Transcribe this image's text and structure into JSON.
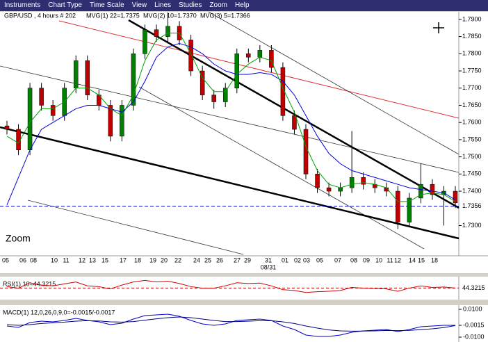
{
  "menu": [
    "Instruments",
    "Chart Type",
    "Time Scale",
    "View",
    "Lines",
    "Studies",
    "Zoom",
    "Help"
  ],
  "chart_data": [
    {
      "type": "candlestick",
      "title": "GBP/USD , 4 hours # 202",
      "annotation": "Zoom",
      "legend_note": "MVG(3) 5=1.7366",
      "x_sublabel": "08/31",
      "x_labels": [
        "05",
        "06",
        "08",
        "10",
        "11",
        "12",
        "13",
        "15",
        "17",
        "18",
        "19",
        "20",
        "22",
        "24",
        "25",
        "26",
        "27",
        "29",
        "31",
        "01",
        "02",
        "03",
        "05",
        "07",
        "08",
        "09",
        "10",
        "11",
        "12",
        "14",
        "15",
        "18"
      ],
      "up_color": "#008000",
      "down_color": "#c00000",
      "open": [
        1.759,
        1.758,
        1.752,
        1.77,
        1.765,
        1.762,
        1.77,
        1.778,
        1.768,
        1.765,
        1.756,
        1.765,
        1.78,
        1.787,
        1.785,
        1.788,
        1.784,
        1.775,
        1.768,
        1.766,
        1.77,
        1.78,
        1.779,
        1.781,
        1.776,
        1.762,
        1.758,
        1.745,
        1.741,
        1.74,
        1.741,
        1.744,
        1.742,
        1.741,
        1.74,
        1.731,
        1.738,
        1.742,
        1.739,
        1.74
      ],
      "high": [
        1.7605,
        1.7595,
        1.7715,
        1.7715,
        1.7665,
        1.7715,
        1.7795,
        1.7795,
        1.7695,
        1.7665,
        1.7665,
        1.7815,
        1.7885,
        1.7885,
        1.792,
        1.7895,
        1.7855,
        1.7765,
        1.7695,
        1.7715,
        1.7815,
        1.7815,
        1.7825,
        1.7825,
        1.7775,
        1.7635,
        1.7595,
        1.7465,
        1.7425,
        1.7425,
        1.7575,
        1.7455,
        1.7435,
        1.7425,
        1.7415,
        1.7395,
        1.748,
        1.7435,
        1.7415,
        1.7415
      ],
      "low": [
        1.7565,
        1.7505,
        1.7505,
        1.7635,
        1.7605,
        1.7605,
        1.7685,
        1.7665,
        1.7635,
        1.7545,
        1.7545,
        1.7635,
        1.7785,
        1.7835,
        1.7835,
        1.7825,
        1.7735,
        1.7665,
        1.764,
        1.7645,
        1.7685,
        1.7775,
        1.7775,
        1.7745,
        1.7605,
        1.7565,
        1.7435,
        1.7395,
        1.7385,
        1.7385,
        1.7395,
        1.7405,
        1.7395,
        1.7385,
        1.729,
        1.7295,
        1.7365,
        1.7375,
        1.73,
        1.7351
      ],
      "close": [
        1.758,
        1.752,
        1.77,
        1.765,
        1.762,
        1.77,
        1.778,
        1.768,
        1.765,
        1.756,
        1.765,
        1.78,
        1.787,
        1.785,
        1.788,
        1.784,
        1.775,
        1.768,
        1.766,
        1.77,
        1.78,
        1.779,
        1.781,
        1.776,
        1.762,
        1.758,
        1.745,
        1.741,
        1.74,
        1.741,
        1.744,
        1.742,
        1.741,
        1.74,
        1.731,
        1.738,
        1.742,
        1.739,
        1.74,
        1.7366
      ],
      "series": [
        {
          "name": "MVG(1) 22=1.7375",
          "color": "#0000e0",
          "values": [
            1.736,
            1.744,
            1.752,
            1.758,
            1.76,
            1.762,
            1.764,
            1.765,
            1.765,
            1.764,
            1.763,
            1.766,
            1.772,
            1.779,
            1.782,
            1.783,
            1.782,
            1.78,
            1.777,
            1.775,
            1.774,
            1.774,
            1.7745,
            1.774,
            1.772,
            1.768,
            1.762,
            1.756,
            1.751,
            1.748,
            1.746,
            1.745,
            1.744,
            1.743,
            1.742,
            1.741,
            1.7405,
            1.74,
            1.7395,
            1.7375
          ]
        },
        {
          "name": "MVG(2) 10=1.7370",
          "color": "#00a000",
          "values": [
            1.756,
            1.754,
            1.76,
            1.764,
            1.764,
            1.766,
            1.77,
            1.77,
            1.768,
            1.764,
            1.762,
            1.768,
            1.778,
            1.784,
            1.786,
            1.786,
            1.78,
            1.773,
            1.769,
            1.769,
            1.774,
            1.777,
            1.779,
            1.778,
            1.77,
            1.763,
            1.753,
            1.746,
            1.742,
            1.741,
            1.742,
            1.7425,
            1.742,
            1.741,
            1.737,
            1.737,
            1.739,
            1.7395,
            1.739,
            1.737
          ]
        }
      ],
      "marker_line": 1.7356,
      "marker_color": "#0000c0",
      "ylim": [
        1.7212,
        1.7922
      ],
      "yticks": [
        {
          "value": 1.79,
          "label": "1.7900"
        },
        {
          "value": 1.785,
          "label": "1.7850"
        },
        {
          "value": 1.78,
          "label": "1.7800"
        },
        {
          "value": 1.775,
          "label": "1.7750"
        },
        {
          "value": 1.77,
          "label": "1.7700"
        },
        {
          "value": 1.765,
          "label": "1.7650"
        },
        {
          "value": 1.76,
          "label": "1.7600"
        },
        {
          "value": 1.755,
          "label": "1.7550"
        },
        {
          "value": 1.75,
          "label": "1.7500"
        },
        {
          "value": 1.745,
          "label": "1.7450"
        },
        {
          "value": 1.74,
          "label": "1.7400"
        },
        {
          "value": 1.73,
          "label": "1.7300"
        }
      ]
    },
    {
      "type": "line",
      "title": "RSI(1) 10=44.3215",
      "series": [
        {
          "color": "#d00000",
          "values": [
            48,
            44,
            58,
            52,
            50,
            55,
            60,
            50,
            48,
            42,
            52,
            60,
            64,
            60,
            62,
            56,
            48,
            44,
            44,
            50,
            58,
            56,
            57,
            50,
            40,
            38,
            33,
            35,
            36,
            38,
            46,
            44,
            43,
            42,
            36,
            44,
            50,
            46,
            47,
            44.3215
          ]
        }
      ],
      "ylim": [
        20,
        70
      ],
      "yticks": [
        44.3215
      ]
    },
    {
      "type": "line",
      "title": "MACD(1) 12,0,26,0,9,0=-0.0015/-0.0017",
      "series": [
        {
          "color": "#0000c0",
          "values": [
            -0.002,
            -0.003,
            0.0005,
            0.0015,
            0.001,
            0.002,
            0.0035,
            0.002,
            0.001,
            -0.001,
            0.0,
            0.003,
            0.0055,
            0.006,
            0.0065,
            0.005,
            0.002,
            -0.0005,
            -0.0015,
            -0.0005,
            0.002,
            0.0025,
            0.003,
            0.002,
            -0.002,
            -0.0045,
            -0.0085,
            -0.0095,
            -0.0095,
            -0.0085,
            -0.0065,
            -0.0055,
            -0.005,
            -0.0045,
            -0.006,
            -0.0045,
            -0.0025,
            -0.002,
            -0.0015,
            -0.0015
          ]
        },
        {
          "color": "#000080",
          "values": [
            -0.001,
            -0.0015,
            -0.001,
            -0.0002,
            0.0003,
            0.0008,
            0.0015,
            0.0018,
            0.0016,
            0.001,
            0.0008,
            0.0012,
            0.0022,
            0.0032,
            0.004,
            0.0045,
            0.004,
            0.003,
            0.002,
            0.0012,
            0.0012,
            0.0015,
            0.0018,
            0.0018,
            0.001,
            -0.0002,
            -0.002,
            -0.0035,
            -0.0048,
            -0.0055,
            -0.0057,
            -0.0056,
            -0.0055,
            -0.0052,
            -0.0053,
            -0.0051,
            -0.0046,
            -0.004,
            -0.0031,
            -0.0017
          ]
        }
      ],
      "ylim": [
        -0.012,
        0.012
      ],
      "yticks": [
        {
          "value": 0.01,
          "label": "0.0100"
        },
        {
          "value": -0.0015,
          "label": "-0.0015"
        },
        {
          "value": -0.01,
          "label": "-0.0100"
        }
      ]
    }
  ]
}
